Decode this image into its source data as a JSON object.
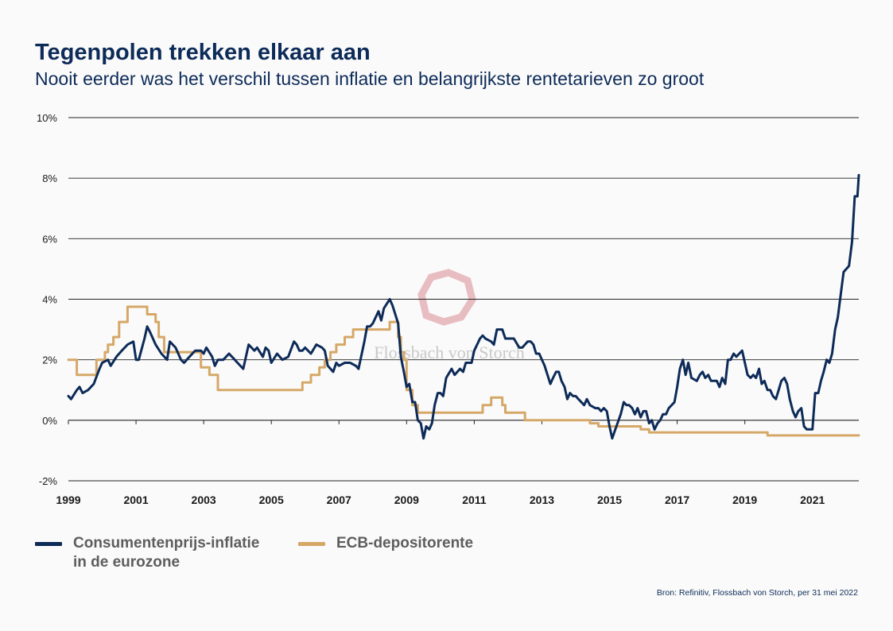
{
  "header": {
    "title": "Tegenpolen trekken elkaar aan",
    "subtitle": "Nooit eerder was het verschil tussen inflatie en belangrijkste rentetarieven zo groot"
  },
  "source": "Bron: Refinitiv, Flossbach von Storch, per 31 mei 2022",
  "watermark": "Flossbach von Storch",
  "colors": {
    "inflation": "#0d2b58",
    "ecb": "#d5a868",
    "grid": "#222222",
    "text": "#1a1a1a"
  },
  "chart_data": {
    "type": "line",
    "title": "Tegenpolen trekken elkaar aan",
    "xlim": [
      1999.0,
      2022.37
    ],
    "ylim": [
      -2,
      10
    ],
    "y_ticks": [
      -2,
      0,
      2,
      4,
      6,
      8,
      10
    ],
    "y_tick_labels": [
      "-2%",
      "0%",
      "2%",
      "4%",
      "6%",
      "8%",
      "10%"
    ],
    "x_ticks": [
      1999,
      2001,
      2003,
      2005,
      2007,
      2009,
      2011,
      2013,
      2015,
      2017,
      2019,
      2021
    ],
    "x_tick_labels": [
      "1999",
      "2001",
      "2003",
      "2005",
      "2007",
      "2009",
      "2011",
      "2013",
      "2015",
      "2017",
      "2019",
      "2021"
    ],
    "grid": true,
    "legend_position": "bottom-left",
    "series": [
      {
        "name": "Consumentenprijs-inflatie\nin de eurozone",
        "key": "inflation",
        "type": "line",
        "points": [
          [
            1999.0,
            0.8
          ],
          [
            1999.08,
            0.7
          ],
          [
            1999.25,
            1.0
          ],
          [
            1999.33,
            1.1
          ],
          [
            1999.42,
            0.9
          ],
          [
            1999.58,
            1.0
          ],
          [
            1999.75,
            1.2
          ],
          [
            1999.92,
            1.7
          ],
          [
            2000.0,
            1.9
          ],
          [
            2000.17,
            2.0
          ],
          [
            2000.25,
            1.8
          ],
          [
            2000.42,
            2.1
          ],
          [
            2000.58,
            2.3
          ],
          [
            2000.75,
            2.5
          ],
          [
            2000.92,
            2.6
          ],
          [
            2001.0,
            2.0
          ],
          [
            2001.08,
            2.0
          ],
          [
            2001.25,
            2.7
          ],
          [
            2001.33,
            3.1
          ],
          [
            2001.42,
            2.9
          ],
          [
            2001.58,
            2.5
          ],
          [
            2001.75,
            2.2
          ],
          [
            2001.92,
            2.0
          ],
          [
            2002.0,
            2.6
          ],
          [
            2002.17,
            2.4
          ],
          [
            2002.33,
            2.0
          ],
          [
            2002.42,
            1.9
          ],
          [
            2002.58,
            2.1
          ],
          [
            2002.75,
            2.3
          ],
          [
            2002.92,
            2.3
          ],
          [
            2003.0,
            2.2
          ],
          [
            2003.08,
            2.4
          ],
          [
            2003.25,
            2.1
          ],
          [
            2003.33,
            1.8
          ],
          [
            2003.42,
            2.0
          ],
          [
            2003.58,
            2.0
          ],
          [
            2003.75,
            2.2
          ],
          [
            2003.92,
            2.0
          ],
          [
            2004.0,
            1.9
          ],
          [
            2004.17,
            1.7
          ],
          [
            2004.33,
            2.5
          ],
          [
            2004.5,
            2.3
          ],
          [
            2004.58,
            2.4
          ],
          [
            2004.75,
            2.1
          ],
          [
            2004.83,
            2.4
          ],
          [
            2004.92,
            2.3
          ],
          [
            2005.0,
            1.9
          ],
          [
            2005.17,
            2.2
          ],
          [
            2005.33,
            2.0
          ],
          [
            2005.5,
            2.1
          ],
          [
            2005.67,
            2.6
          ],
          [
            2005.75,
            2.5
          ],
          [
            2005.83,
            2.3
          ],
          [
            2005.92,
            2.3
          ],
          [
            2006.0,
            2.4
          ],
          [
            2006.17,
            2.2
          ],
          [
            2006.33,
            2.5
          ],
          [
            2006.5,
            2.4
          ],
          [
            2006.58,
            2.3
          ],
          [
            2006.67,
            1.8
          ],
          [
            2006.83,
            1.6
          ],
          [
            2006.92,
            1.9
          ],
          [
            2007.0,
            1.8
          ],
          [
            2007.17,
            1.9
          ],
          [
            2007.33,
            1.9
          ],
          [
            2007.5,
            1.8
          ],
          [
            2007.58,
            1.7
          ],
          [
            2007.75,
            2.6
          ],
          [
            2007.83,
            3.1
          ],
          [
            2007.92,
            3.1
          ],
          [
            2008.0,
            3.2
          ],
          [
            2008.17,
            3.6
          ],
          [
            2008.25,
            3.3
          ],
          [
            2008.33,
            3.7
          ],
          [
            2008.5,
            4.0
          ],
          [
            2008.58,
            3.8
          ],
          [
            2008.75,
            3.2
          ],
          [
            2008.83,
            2.1
          ],
          [
            2008.92,
            1.6
          ],
          [
            2009.0,
            1.1
          ],
          [
            2009.08,
            1.2
          ],
          [
            2009.17,
            0.6
          ],
          [
            2009.25,
            0.6
          ],
          [
            2009.33,
            0.0
          ],
          [
            2009.42,
            -0.1
          ],
          [
            2009.5,
            -0.6
          ],
          [
            2009.58,
            -0.2
          ],
          [
            2009.67,
            -0.3
          ],
          [
            2009.75,
            -0.1
          ],
          [
            2009.83,
            0.5
          ],
          [
            2009.92,
            0.9
          ],
          [
            2010.0,
            0.9
          ],
          [
            2010.08,
            0.8
          ],
          [
            2010.17,
            1.4
          ],
          [
            2010.33,
            1.7
          ],
          [
            2010.42,
            1.5
          ],
          [
            2010.58,
            1.7
          ],
          [
            2010.67,
            1.6
          ],
          [
            2010.75,
            1.9
          ],
          [
            2010.92,
            1.9
          ],
          [
            2011.0,
            2.3
          ],
          [
            2011.17,
            2.7
          ],
          [
            2011.25,
            2.8
          ],
          [
            2011.33,
            2.7
          ],
          [
            2011.5,
            2.6
          ],
          [
            2011.58,
            2.5
          ],
          [
            2011.67,
            3.0
          ],
          [
            2011.83,
            3.0
          ],
          [
            2011.92,
            2.7
          ],
          [
            2012.0,
            2.7
          ],
          [
            2012.17,
            2.7
          ],
          [
            2012.33,
            2.4
          ],
          [
            2012.42,
            2.4
          ],
          [
            2012.58,
            2.6
          ],
          [
            2012.67,
            2.6
          ],
          [
            2012.75,
            2.5
          ],
          [
            2012.83,
            2.2
          ],
          [
            2012.92,
            2.2
          ],
          [
            2013.0,
            2.0
          ],
          [
            2013.08,
            1.8
          ],
          [
            2013.25,
            1.2
          ],
          [
            2013.33,
            1.4
          ],
          [
            2013.42,
            1.6
          ],
          [
            2013.5,
            1.6
          ],
          [
            2013.58,
            1.3
          ],
          [
            2013.67,
            1.1
          ],
          [
            2013.75,
            0.7
          ],
          [
            2013.83,
            0.9
          ],
          [
            2013.92,
            0.8
          ],
          [
            2014.0,
            0.8
          ],
          [
            2014.08,
            0.7
          ],
          [
            2014.25,
            0.5
          ],
          [
            2014.33,
            0.7
          ],
          [
            2014.42,
            0.5
          ],
          [
            2014.58,
            0.4
          ],
          [
            2014.67,
            0.4
          ],
          [
            2014.75,
            0.3
          ],
          [
            2014.83,
            0.4
          ],
          [
            2014.92,
            0.3
          ],
          [
            2015.0,
            -0.2
          ],
          [
            2015.08,
            -0.6
          ],
          [
            2015.17,
            -0.3
          ],
          [
            2015.33,
            0.2
          ],
          [
            2015.42,
            0.6
          ],
          [
            2015.5,
            0.5
          ],
          [
            2015.58,
            0.5
          ],
          [
            2015.67,
            0.4
          ],
          [
            2015.75,
            0.2
          ],
          [
            2015.83,
            0.4
          ],
          [
            2015.92,
            0.1
          ],
          [
            2016.0,
            0.3
          ],
          [
            2016.08,
            0.3
          ],
          [
            2016.17,
            -0.1
          ],
          [
            2016.25,
            0.0
          ],
          [
            2016.33,
            -0.3
          ],
          [
            2016.42,
            -0.1
          ],
          [
            2016.5,
            0.0
          ],
          [
            2016.58,
            0.2
          ],
          [
            2016.67,
            0.2
          ],
          [
            2016.75,
            0.4
          ],
          [
            2016.92,
            0.6
          ],
          [
            2017.0,
            1.1
          ],
          [
            2017.08,
            1.7
          ],
          [
            2017.17,
            2.0
          ],
          [
            2017.25,
            1.5
          ],
          [
            2017.33,
            1.9
          ],
          [
            2017.42,
            1.4
          ],
          [
            2017.58,
            1.3
          ],
          [
            2017.67,
            1.5
          ],
          [
            2017.75,
            1.6
          ],
          [
            2017.83,
            1.4
          ],
          [
            2017.92,
            1.5
          ],
          [
            2018.0,
            1.3
          ],
          [
            2018.17,
            1.3
          ],
          [
            2018.25,
            1.1
          ],
          [
            2018.33,
            1.4
          ],
          [
            2018.42,
            1.2
          ],
          [
            2018.5,
            2.0
          ],
          [
            2018.58,
            2.0
          ],
          [
            2018.67,
            2.2
          ],
          [
            2018.75,
            2.1
          ],
          [
            2018.92,
            2.3
          ],
          [
            2019.0,
            1.9
          ],
          [
            2019.08,
            1.5
          ],
          [
            2019.17,
            1.4
          ],
          [
            2019.25,
            1.5
          ],
          [
            2019.33,
            1.4
          ],
          [
            2019.42,
            1.7
          ],
          [
            2019.5,
            1.2
          ],
          [
            2019.58,
            1.3
          ],
          [
            2019.67,
            1.0
          ],
          [
            2019.75,
            1.0
          ],
          [
            2019.83,
            0.8
          ],
          [
            2019.92,
            0.7
          ],
          [
            2020.0,
            1.0
          ],
          [
            2020.08,
            1.3
          ],
          [
            2020.17,
            1.4
          ],
          [
            2020.25,
            1.2
          ],
          [
            2020.33,
            0.7
          ],
          [
            2020.42,
            0.3
          ],
          [
            2020.5,
            0.1
          ],
          [
            2020.58,
            0.3
          ],
          [
            2020.67,
            0.4
          ],
          [
            2020.75,
            -0.2
          ],
          [
            2020.83,
            -0.3
          ],
          [
            2020.92,
            -0.3
          ],
          [
            2021.0,
            -0.3
          ],
          [
            2021.08,
            0.9
          ],
          [
            2021.17,
            0.9
          ],
          [
            2021.25,
            1.3
          ],
          [
            2021.33,
            1.6
          ],
          [
            2021.42,
            2.0
          ],
          [
            2021.5,
            1.9
          ],
          [
            2021.58,
            2.2
          ],
          [
            2021.67,
            3.0
          ],
          [
            2021.75,
            3.4
          ],
          [
            2021.83,
            4.1
          ],
          [
            2021.92,
            4.9
          ],
          [
            2022.08,
            5.1
          ],
          [
            2022.17,
            5.9
          ],
          [
            2022.25,
            7.4
          ],
          [
            2022.33,
            7.4
          ],
          [
            2022.37,
            8.1
          ]
        ]
      },
      {
        "name": "ECB-depositorente",
        "key": "ecb",
        "type": "step",
        "points": [
          [
            1999.0,
            2.0
          ],
          [
            1999.25,
            1.5
          ],
          [
            1999.83,
            2.0
          ],
          [
            2000.08,
            2.25
          ],
          [
            2000.17,
            2.5
          ],
          [
            2000.33,
            2.75
          ],
          [
            2000.5,
            3.25
          ],
          [
            2000.75,
            3.75
          ],
          [
            2001.33,
            3.5
          ],
          [
            2001.58,
            3.25
          ],
          [
            2001.67,
            2.75
          ],
          [
            2001.83,
            2.25
          ],
          [
            2002.92,
            1.75
          ],
          [
            2003.17,
            1.5
          ],
          [
            2003.42,
            1.0
          ],
          [
            2005.92,
            1.25
          ],
          [
            2006.17,
            1.5
          ],
          [
            2006.42,
            1.75
          ],
          [
            2006.58,
            2.0
          ],
          [
            2006.75,
            2.25
          ],
          [
            2006.92,
            2.5
          ],
          [
            2007.17,
            2.75
          ],
          [
            2007.42,
            3.0
          ],
          [
            2008.5,
            3.25
          ],
          [
            2008.75,
            2.75
          ],
          [
            2008.83,
            2.25
          ],
          [
            2008.92,
            2.0
          ],
          [
            2009.0,
            1.0
          ],
          [
            2009.17,
            0.5
          ],
          [
            2009.33,
            0.25
          ],
          [
            2011.25,
            0.5
          ],
          [
            2011.5,
            0.75
          ],
          [
            2011.83,
            0.5
          ],
          [
            2011.92,
            0.25
          ],
          [
            2012.5,
            0.0
          ],
          [
            2014.42,
            -0.1
          ],
          [
            2014.67,
            -0.2
          ],
          [
            2015.92,
            -0.3
          ],
          [
            2016.17,
            -0.4
          ],
          [
            2019.67,
            -0.5
          ],
          [
            2022.37,
            -0.5
          ]
        ]
      }
    ]
  }
}
